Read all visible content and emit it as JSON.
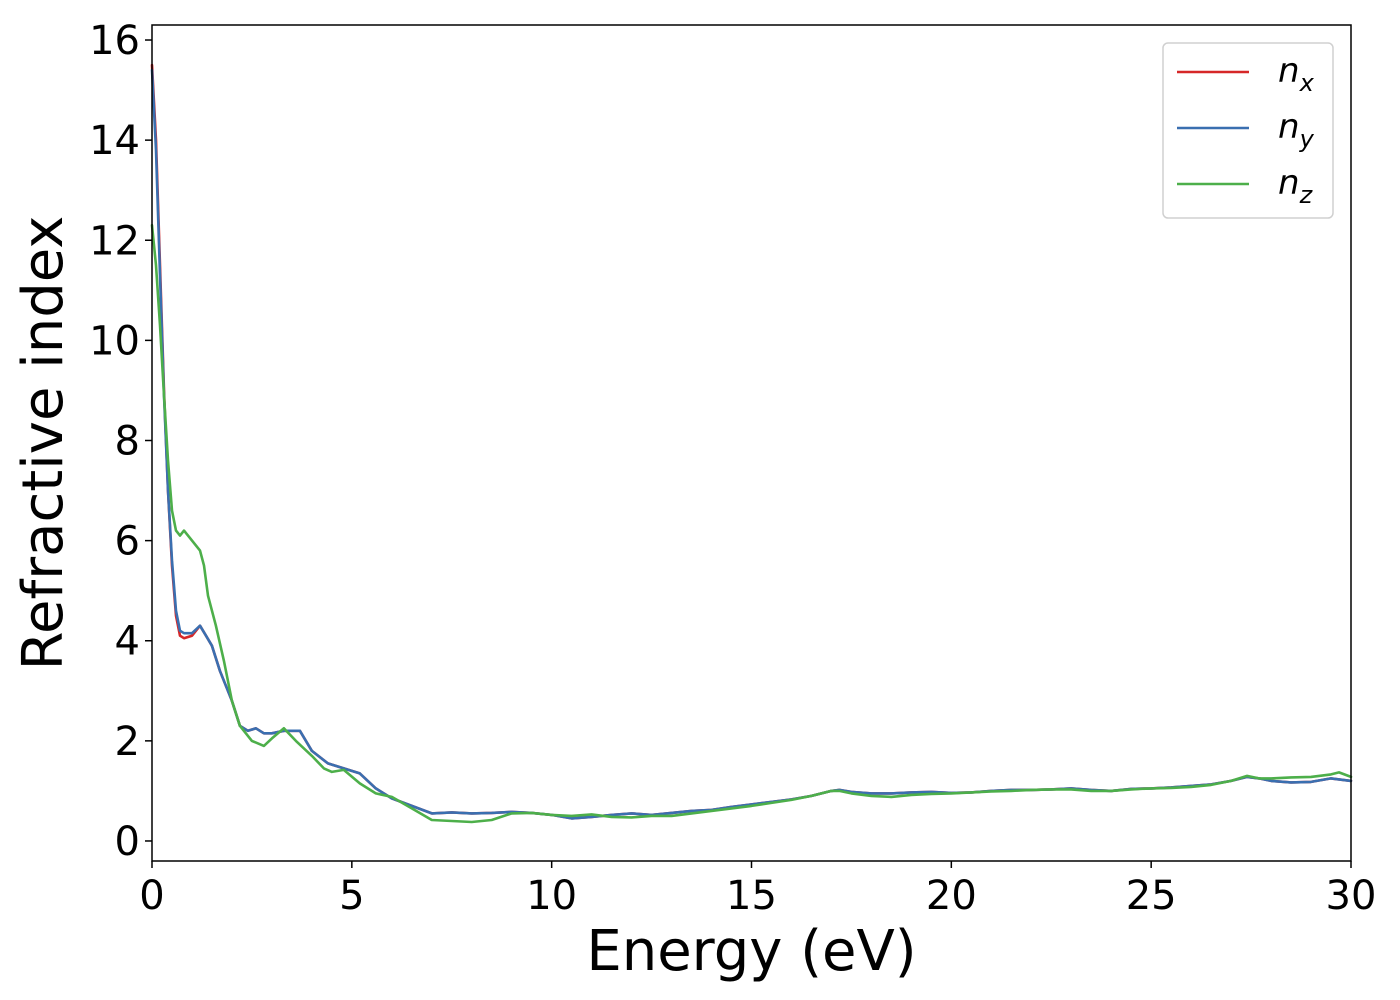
{
  "chart_data": {
    "type": "line",
    "title": "",
    "xlabel": "Energy (eV)",
    "ylabel": "Refractive index",
    "xlim": [
      0,
      30
    ],
    "ylim": [
      -0.4,
      16.3
    ],
    "xticks": [
      0,
      5,
      10,
      15,
      20,
      25,
      30
    ],
    "yticks": [
      0,
      2,
      4,
      6,
      8,
      10,
      12,
      14,
      16
    ],
    "xtick_labels": [
      "0",
      "5",
      "10",
      "15",
      "20",
      "25",
      "30"
    ],
    "ytick_labels": [
      "0",
      "2",
      "4",
      "6",
      "8",
      "10",
      "12",
      "14",
      "16"
    ],
    "grid": false,
    "legend_position": "top-right",
    "series": [
      {
        "name": "n_x",
        "label_base": "n",
        "label_sub": "x",
        "color": "#d62728",
        "points": [
          [
            0,
            15.5
          ],
          [
            0.1,
            14.0
          ],
          [
            0.2,
            11.5
          ],
          [
            0.3,
            9.0
          ],
          [
            0.4,
            7.0
          ],
          [
            0.5,
            5.5
          ],
          [
            0.6,
            4.5
          ],
          [
            0.7,
            4.1
          ],
          [
            0.8,
            4.05
          ],
          [
            1.0,
            4.1
          ],
          [
            1.2,
            4.3
          ],
          [
            1.35,
            4.1
          ],
          [
            1.5,
            3.9
          ],
          [
            1.7,
            3.4
          ],
          [
            2.0,
            2.8
          ],
          [
            2.2,
            2.3
          ],
          [
            2.4,
            2.2
          ],
          [
            2.6,
            2.25
          ],
          [
            2.8,
            2.15
          ],
          [
            3.0,
            2.15
          ],
          [
            3.3,
            2.2
          ],
          [
            3.7,
            2.2
          ],
          [
            4.0,
            1.8
          ],
          [
            4.4,
            1.55
          ],
          [
            4.8,
            1.45
          ],
          [
            5.2,
            1.35
          ],
          [
            5.6,
            1.05
          ],
          [
            6.0,
            0.85
          ],
          [
            6.5,
            0.7
          ],
          [
            7.0,
            0.55
          ],
          [
            7.5,
            0.57
          ],
          [
            8.0,
            0.55
          ],
          [
            8.5,
            0.56
          ],
          [
            9.0,
            0.58
          ],
          [
            9.5,
            0.56
          ],
          [
            10.0,
            0.52
          ],
          [
            10.5,
            0.45
          ],
          [
            11.0,
            0.48
          ],
          [
            11.5,
            0.52
          ],
          [
            12.0,
            0.55
          ],
          [
            12.5,
            0.52
          ],
          [
            13.0,
            0.56
          ],
          [
            13.5,
            0.6
          ],
          [
            14.0,
            0.62
          ],
          [
            14.5,
            0.68
          ],
          [
            15.0,
            0.73
          ],
          [
            15.5,
            0.78
          ],
          [
            16.0,
            0.83
          ],
          [
            16.5,
            0.9
          ],
          [
            17.0,
            1.0
          ],
          [
            17.2,
            1.02
          ],
          [
            17.5,
            0.98
          ],
          [
            18.0,
            0.95
          ],
          [
            18.5,
            0.95
          ],
          [
            19.0,
            0.97
          ],
          [
            19.5,
            0.98
          ],
          [
            20.0,
            0.96
          ],
          [
            20.5,
            0.97
          ],
          [
            21.0,
            1.0
          ],
          [
            21.5,
            1.02
          ],
          [
            22.0,
            1.02
          ],
          [
            22.5,
            1.03
          ],
          [
            23.0,
            1.05
          ],
          [
            23.5,
            1.02
          ],
          [
            24.0,
            1.0
          ],
          [
            24.5,
            1.04
          ],
          [
            25.0,
            1.05
          ],
          [
            25.5,
            1.07
          ],
          [
            26.0,
            1.1
          ],
          [
            26.5,
            1.13
          ],
          [
            27.0,
            1.2
          ],
          [
            27.4,
            1.28
          ],
          [
            27.7,
            1.25
          ],
          [
            28.0,
            1.2
          ],
          [
            28.5,
            1.17
          ],
          [
            29.0,
            1.18
          ],
          [
            29.5,
            1.25
          ],
          [
            30.0,
            1.2
          ]
        ]
      },
      {
        "name": "n_y",
        "label_base": "n",
        "label_sub": "y",
        "color": "#3a6fb0",
        "points": [
          [
            0,
            15.4
          ],
          [
            0.1,
            13.8
          ],
          [
            0.2,
            11.3
          ],
          [
            0.3,
            8.9
          ],
          [
            0.4,
            7.0
          ],
          [
            0.5,
            5.6
          ],
          [
            0.6,
            4.6
          ],
          [
            0.7,
            4.2
          ],
          [
            0.8,
            4.15
          ],
          [
            1.0,
            4.15
          ],
          [
            1.2,
            4.3
          ],
          [
            1.35,
            4.1
          ],
          [
            1.5,
            3.9
          ],
          [
            1.7,
            3.4
          ],
          [
            2.0,
            2.8
          ],
          [
            2.2,
            2.3
          ],
          [
            2.4,
            2.2
          ],
          [
            2.6,
            2.25
          ],
          [
            2.8,
            2.15
          ],
          [
            3.0,
            2.15
          ],
          [
            3.3,
            2.2
          ],
          [
            3.7,
            2.2
          ],
          [
            4.0,
            1.8
          ],
          [
            4.4,
            1.55
          ],
          [
            4.8,
            1.45
          ],
          [
            5.2,
            1.35
          ],
          [
            5.6,
            1.05
          ],
          [
            6.0,
            0.85
          ],
          [
            6.5,
            0.7
          ],
          [
            7.0,
            0.55
          ],
          [
            7.5,
            0.57
          ],
          [
            8.0,
            0.55
          ],
          [
            8.5,
            0.56
          ],
          [
            9.0,
            0.58
          ],
          [
            9.5,
            0.56
          ],
          [
            10.0,
            0.52
          ],
          [
            10.5,
            0.45
          ],
          [
            11.0,
            0.48
          ],
          [
            11.5,
            0.52
          ],
          [
            12.0,
            0.55
          ],
          [
            12.5,
            0.52
          ],
          [
            13.0,
            0.56
          ],
          [
            13.5,
            0.6
          ],
          [
            14.0,
            0.62
          ],
          [
            14.5,
            0.68
          ],
          [
            15.0,
            0.73
          ],
          [
            15.5,
            0.78
          ],
          [
            16.0,
            0.83
          ],
          [
            16.5,
            0.9
          ],
          [
            17.0,
            1.0
          ],
          [
            17.2,
            1.02
          ],
          [
            17.5,
            0.98
          ],
          [
            18.0,
            0.95
          ],
          [
            18.5,
            0.95
          ],
          [
            19.0,
            0.97
          ],
          [
            19.5,
            0.98
          ],
          [
            20.0,
            0.96
          ],
          [
            20.5,
            0.97
          ],
          [
            21.0,
            1.0
          ],
          [
            21.5,
            1.02
          ],
          [
            22.0,
            1.02
          ],
          [
            22.5,
            1.03
          ],
          [
            23.0,
            1.05
          ],
          [
            23.5,
            1.02
          ],
          [
            24.0,
            1.0
          ],
          [
            24.5,
            1.04
          ],
          [
            25.0,
            1.05
          ],
          [
            25.5,
            1.07
          ],
          [
            26.0,
            1.1
          ],
          [
            26.5,
            1.13
          ],
          [
            27.0,
            1.2
          ],
          [
            27.4,
            1.28
          ],
          [
            27.7,
            1.25
          ],
          [
            28.0,
            1.2
          ],
          [
            28.5,
            1.17
          ],
          [
            29.0,
            1.18
          ],
          [
            29.5,
            1.25
          ],
          [
            30.0,
            1.2
          ]
        ]
      },
      {
        "name": "n_z",
        "label_base": "n",
        "label_sub": "z",
        "color": "#4daf4a",
        "points": [
          [
            0,
            12.3
          ],
          [
            0.1,
            11.5
          ],
          [
            0.2,
            10.3
          ],
          [
            0.3,
            8.9
          ],
          [
            0.4,
            7.6
          ],
          [
            0.5,
            6.6
          ],
          [
            0.6,
            6.2
          ],
          [
            0.7,
            6.1
          ],
          [
            0.8,
            6.2
          ],
          [
            1.0,
            6.0
          ],
          [
            1.2,
            5.8
          ],
          [
            1.3,
            5.5
          ],
          [
            1.4,
            4.9
          ],
          [
            1.6,
            4.3
          ],
          [
            1.8,
            3.6
          ],
          [
            2.0,
            2.8
          ],
          [
            2.2,
            2.3
          ],
          [
            2.5,
            2.0
          ],
          [
            2.8,
            1.9
          ],
          [
            3.0,
            2.05
          ],
          [
            3.3,
            2.25
          ],
          [
            3.6,
            2.0
          ],
          [
            4.0,
            1.7
          ],
          [
            4.3,
            1.45
          ],
          [
            4.5,
            1.38
          ],
          [
            4.8,
            1.42
          ],
          [
            5.2,
            1.15
          ],
          [
            5.6,
            0.95
          ],
          [
            6.0,
            0.88
          ],
          [
            6.5,
            0.65
          ],
          [
            7.0,
            0.42
          ],
          [
            7.5,
            0.4
          ],
          [
            8.0,
            0.38
          ],
          [
            8.5,
            0.42
          ],
          [
            9.0,
            0.55
          ],
          [
            9.5,
            0.56
          ],
          [
            10.0,
            0.52
          ],
          [
            10.5,
            0.5
          ],
          [
            11.0,
            0.53
          ],
          [
            11.5,
            0.48
          ],
          [
            12.0,
            0.47
          ],
          [
            12.5,
            0.5
          ],
          [
            13.0,
            0.5
          ],
          [
            13.5,
            0.55
          ],
          [
            14.0,
            0.6
          ],
          [
            14.5,
            0.65
          ],
          [
            15.0,
            0.7
          ],
          [
            15.5,
            0.76
          ],
          [
            16.0,
            0.82
          ],
          [
            16.5,
            0.9
          ],
          [
            17.0,
            1.0
          ],
          [
            17.2,
            1.0
          ],
          [
            17.5,
            0.95
          ],
          [
            18.0,
            0.9
          ],
          [
            18.5,
            0.88
          ],
          [
            19.0,
            0.92
          ],
          [
            19.5,
            0.94
          ],
          [
            20.0,
            0.95
          ],
          [
            20.5,
            0.97
          ],
          [
            21.0,
            0.99
          ],
          [
            21.5,
            1.0
          ],
          [
            22.0,
            1.02
          ],
          [
            22.5,
            1.03
          ],
          [
            23.0,
            1.03
          ],
          [
            23.5,
            1.0
          ],
          [
            24.0,
            1.0
          ],
          [
            24.5,
            1.03
          ],
          [
            25.0,
            1.05
          ],
          [
            25.5,
            1.06
          ],
          [
            26.0,
            1.08
          ],
          [
            26.5,
            1.12
          ],
          [
            27.0,
            1.2
          ],
          [
            27.4,
            1.3
          ],
          [
            27.7,
            1.25
          ],
          [
            28.0,
            1.25
          ],
          [
            28.5,
            1.27
          ],
          [
            29.0,
            1.28
          ],
          [
            29.5,
            1.33
          ],
          [
            29.7,
            1.37
          ],
          [
            30.0,
            1.28
          ]
        ]
      }
    ]
  }
}
